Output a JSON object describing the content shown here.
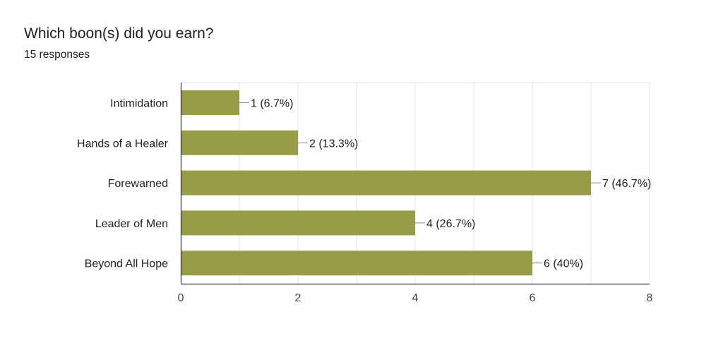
{
  "question": {
    "title": "Which boon(s) did you earn?",
    "responses": "15 responses"
  },
  "colors": {
    "bar": "#979d47",
    "grid": "#e6e6e6",
    "axis": "#333333",
    "leader": "#888888"
  },
  "chart_data": {
    "type": "bar",
    "orientation": "horizontal",
    "categories": [
      "Intimidation",
      "Hands of a Healer",
      "Forewarned",
      "Leader of Men",
      "Beyond All Hope"
    ],
    "values": [
      1,
      2,
      7,
      4,
      6
    ],
    "data_labels": [
      "1 (6.7%)",
      "2 (13.3%)",
      "7 (46.7%)",
      "4 (26.7%)",
      "6 (40%)"
    ],
    "xlim": [
      0,
      8
    ],
    "x_ticks": [
      0,
      2,
      4,
      6,
      8
    ],
    "x_tick_labels": [
      "0",
      "2",
      "4",
      "6",
      "8"
    ],
    "grid": true,
    "legend": "none"
  }
}
